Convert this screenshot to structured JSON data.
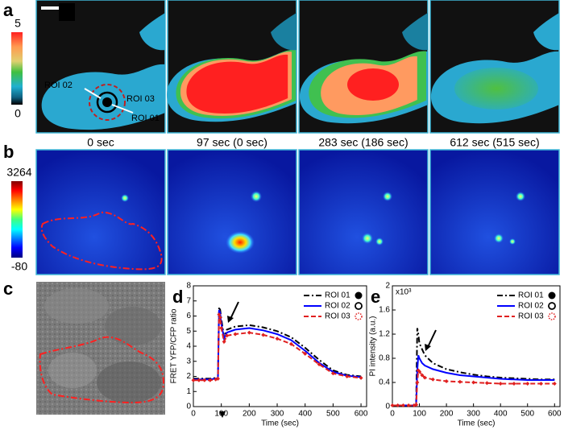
{
  "panel_labels": [
    "a",
    "b",
    "c",
    "d",
    "e"
  ],
  "colorbar_a": {
    "max": "5",
    "min": "0"
  },
  "colorbar_b": {
    "max": "3264",
    "min": "-80"
  },
  "captions": [
    "0 sec",
    "97 sec (0 sec)",
    "283 sec (186 sec)",
    "612 sec (515 sec)"
  ],
  "roi_labels": [
    "ROI 02",
    "ROI 03",
    "ROI 01"
  ],
  "chart_data": [
    {
      "type": "line",
      "xlabel": "Time (sec)",
      "ylabel": "FRET YFP/CFP ratio",
      "x": [
        0,
        20,
        40,
        60,
        80,
        88,
        92,
        96,
        100,
        110,
        120,
        150,
        200,
        250,
        300,
        350,
        400,
        450,
        500,
        550,
        600
      ],
      "series": [
        {
          "name": "ROI 01",
          "color": "#000000",
          "linestyle": "dashdot",
          "marker": "filled-circle",
          "values": [
            1.85,
            1.85,
            1.85,
            1.85,
            1.9,
            1.95,
            6.6,
            6.4,
            5.8,
            4.6,
            5.1,
            5.3,
            5.4,
            5.25,
            5.0,
            4.6,
            3.9,
            3.1,
            2.4,
            2.1,
            2.0
          ]
        },
        {
          "name": "ROI 02",
          "color": "#0000ff",
          "linestyle": "solid",
          "marker": "open-circle",
          "values": [
            1.8,
            1.8,
            1.8,
            1.8,
            1.85,
            1.9,
            6.4,
            6.2,
            5.5,
            4.5,
            4.9,
            5.1,
            5.2,
            5.05,
            4.8,
            4.4,
            3.7,
            2.9,
            2.3,
            2.05,
            1.95
          ]
        },
        {
          "name": "ROI 03",
          "color": "#e02020",
          "linestyle": "dashed",
          "marker": "dotted-circle",
          "values": [
            1.75,
            1.75,
            1.75,
            1.75,
            1.8,
            1.85,
            6.1,
            5.9,
            5.2,
            4.3,
            4.7,
            4.8,
            4.9,
            4.75,
            4.5,
            4.15,
            3.5,
            2.8,
            2.2,
            2.0,
            1.9
          ]
        }
      ],
      "xlim": [
        0,
        620
      ],
      "ylim": [
        0,
        8
      ],
      "xticks": [
        0,
        100,
        200,
        300,
        400,
        500,
        600
      ],
      "yticks": [
        0,
        1,
        2,
        3,
        4,
        5,
        6,
        7,
        8
      ],
      "legend": "upper right"
    },
    {
      "type": "line",
      "xlabel": "Time (sec)",
      "ylabel": "PI intensity (a.u.)",
      "annotation": "x10³",
      "x": [
        0,
        20,
        40,
        60,
        80,
        88,
        92,
        96,
        100,
        110,
        120,
        150,
        200,
        250,
        300,
        350,
        400,
        450,
        500,
        550,
        600
      ],
      "series": [
        {
          "name": "ROI 01",
          "color": "#000000",
          "linestyle": "dashdot",
          "marker": "filled-circle",
          "values": [
            0.02,
            0.02,
            0.02,
            0.02,
            0.02,
            0.05,
            1.3,
            1.2,
            1.05,
            0.95,
            0.85,
            0.72,
            0.62,
            0.57,
            0.53,
            0.5,
            0.48,
            0.47,
            0.46,
            0.45,
            0.45
          ]
        },
        {
          "name": "ROI 02",
          "color": "#0000ff",
          "linestyle": "solid",
          "marker": "open-circle",
          "values": [
            0.02,
            0.02,
            0.02,
            0.02,
            0.02,
            0.04,
            0.6,
            0.85,
            0.8,
            0.72,
            0.68,
            0.62,
            0.56,
            0.52,
            0.5,
            0.48,
            0.46,
            0.45,
            0.44,
            0.44,
            0.44
          ]
        },
        {
          "name": "ROI 03",
          "color": "#e02020",
          "linestyle": "dashed",
          "marker": "dotted-circle",
          "values": [
            0.02,
            0.02,
            0.02,
            0.02,
            0.02,
            0.03,
            0.4,
            0.6,
            0.58,
            0.52,
            0.48,
            0.45,
            0.42,
            0.41,
            0.4,
            0.39,
            0.38,
            0.38,
            0.38,
            0.38,
            0.38
          ]
        }
      ],
      "xlim": [
        0,
        620
      ],
      "ylim": [
        0,
        2
      ],
      "xticks": [
        0,
        100,
        200,
        300,
        400,
        500,
        600
      ],
      "yticks": [
        0,
        0.4,
        0.8,
        1.2,
        1.6,
        2
      ],
      "legend": "upper right"
    }
  ]
}
